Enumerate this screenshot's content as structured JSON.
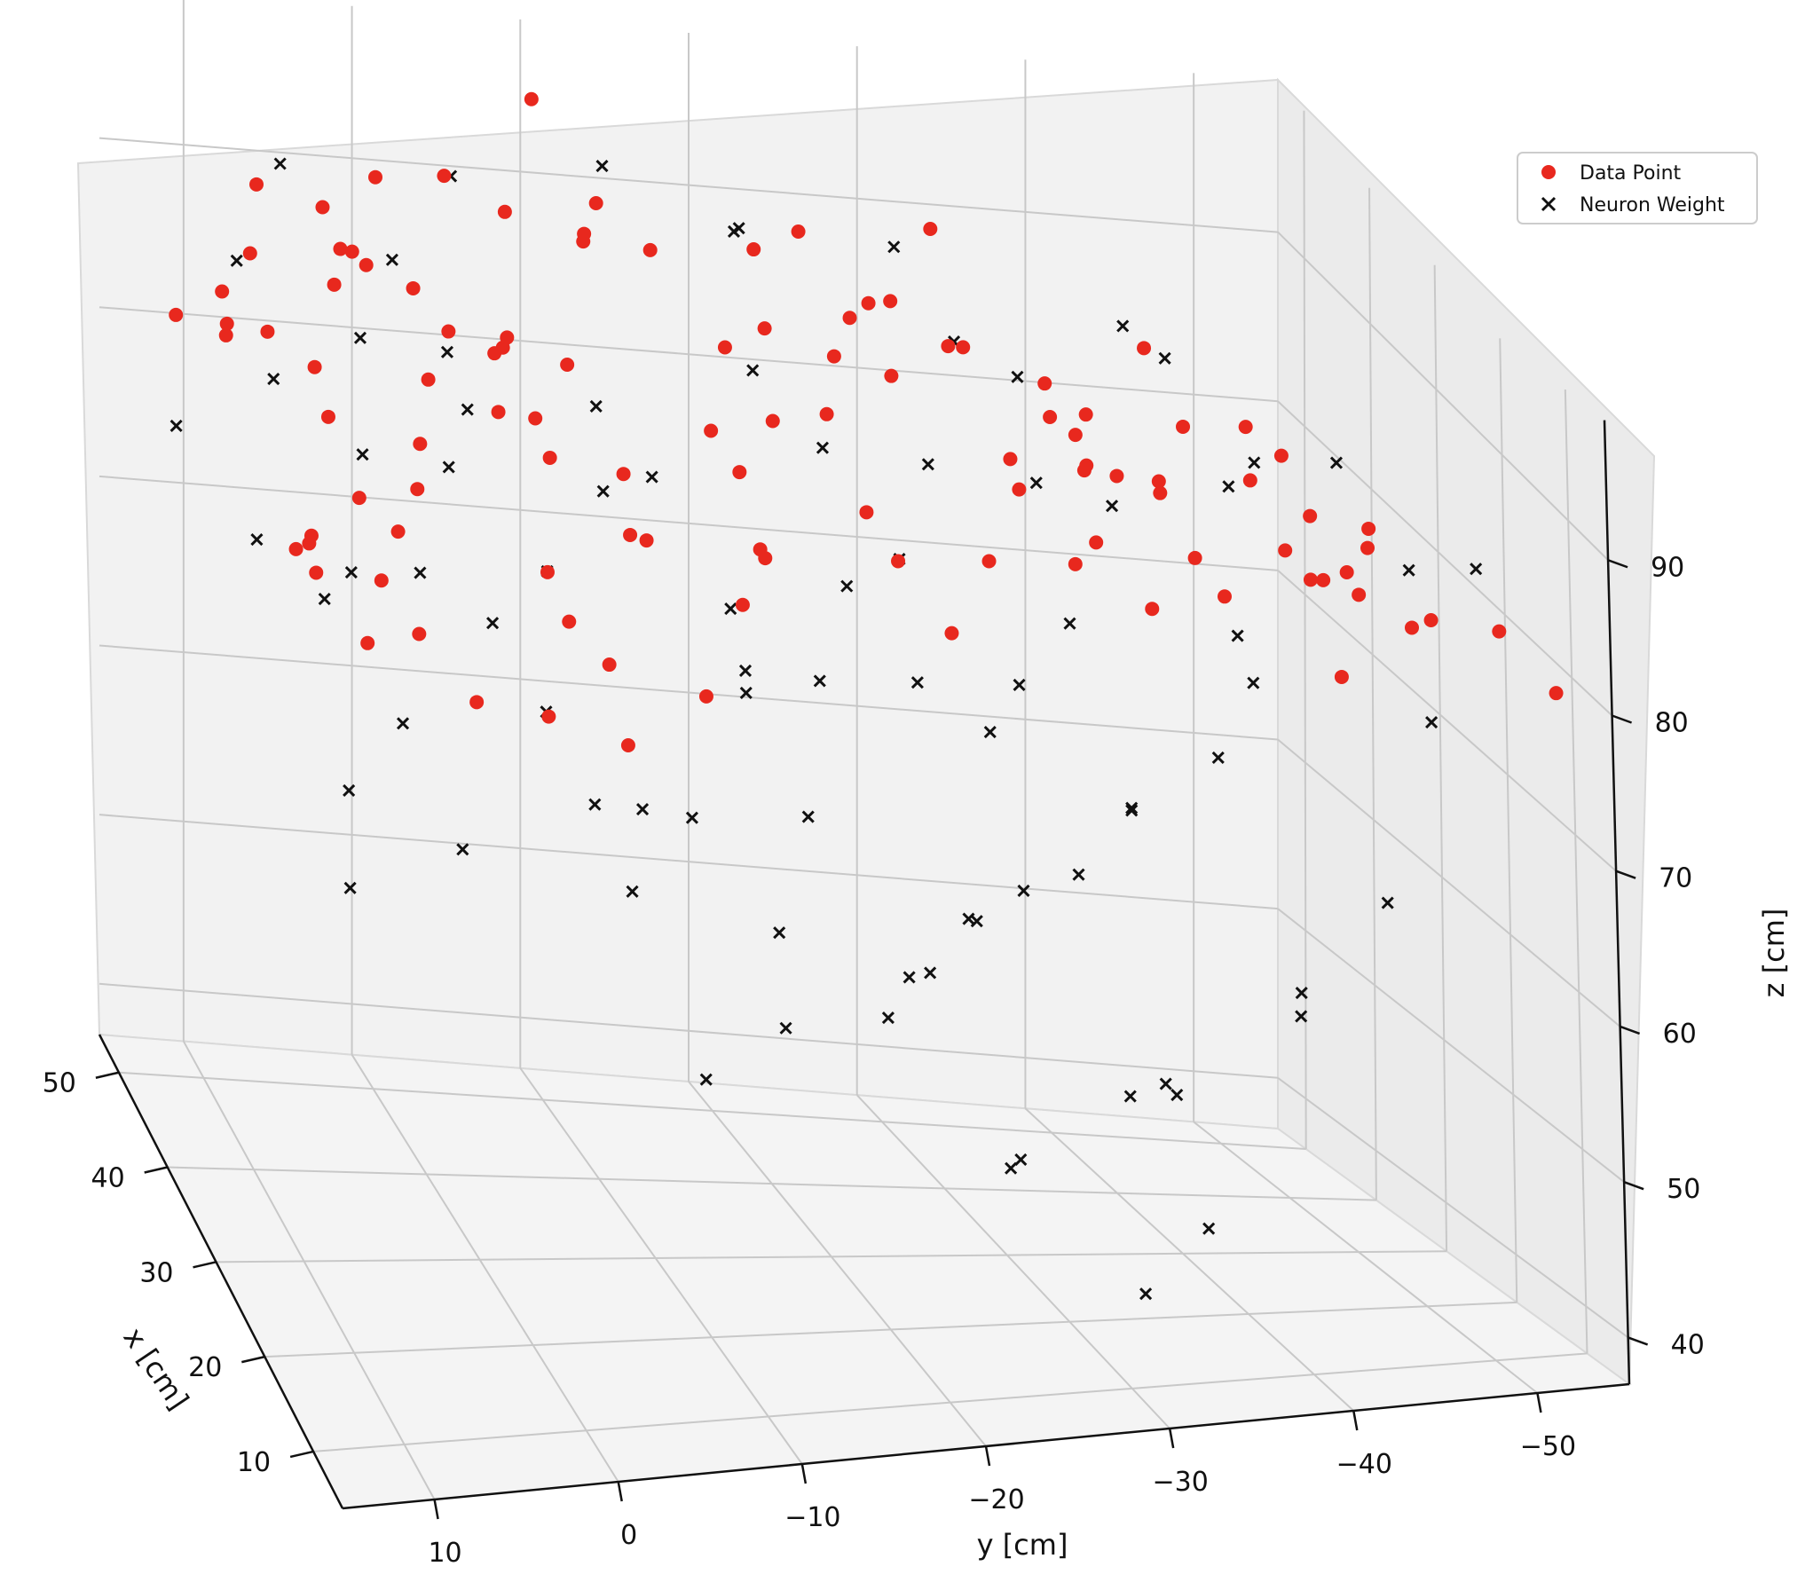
{
  "chart_data": {
    "type": "scatter3d",
    "title": "",
    "xlabel": "x [cm]",
    "ylabel": "y [cm]",
    "zlabel": "z [cm]",
    "xlim": [
      4,
      54
    ],
    "ylim": [
      15,
      -55
    ],
    "zlim": [
      37,
      99
    ],
    "x_ticks": [
      10,
      20,
      30,
      40,
      50
    ],
    "y_ticks": [
      10,
      0,
      -10,
      -20,
      -30,
      -40,
      -50
    ],
    "z_ticks": [
      40,
      50,
      60,
      70,
      80,
      90
    ],
    "x_tick_labels": [
      "10",
      "20",
      "30",
      "40",
      "50"
    ],
    "y_tick_labels": [
      "10",
      "0",
      "−10",
      "−20",
      "−30",
      "−40",
      "−50"
    ],
    "z_tick_labels": [
      "40",
      "50",
      "60",
      "70",
      "80",
      "90"
    ],
    "grid": true,
    "legend_position": "top-right",
    "series": [
      {
        "name": "Data Point",
        "marker": "circle",
        "color": "#e8281e",
        "shape": "upper shell of a dome, z from about 80 to 97 cm",
        "values": [
          [
            25.6,
            2.3,
            98.5
          ],
          [
            40.3,
            -1.5,
            98.0
          ],
          [
            49.2,
            -9.2,
            97.2
          ],
          [
            18.1,
            5.9,
            96.9
          ],
          [
            24.6,
            -4.1,
            96.9
          ],
          [
            18.6,
            -13.9,
            96.9
          ],
          [
            36.4,
            -8.4,
            96.7
          ],
          [
            25.8,
            -19.5,
            96.2
          ],
          [
            10.2,
            -16.6,
            96.0
          ],
          [
            21.3,
            -17.7,
            95.4
          ],
          [
            12.2,
            -25.6,
            95.4
          ],
          [
            34.7,
            6.4,
            95.0
          ],
          [
            26.4,
            -22.9,
            94.5
          ],
          [
            44.4,
            8.3,
            94.3
          ],
          [
            44.0,
            -11.4,
            94.3
          ],
          [
            34.9,
            -24.3,
            94.0
          ],
          [
            10.5,
            0.9,
            93.7
          ],
          [
            14.9,
            8.0,
            93.7
          ],
          [
            43.1,
            -22.9,
            93.6
          ],
          [
            25.4,
            9.2,
            93.4
          ],
          [
            14.0,
            -4.6,
            93.2
          ],
          [
            42.7,
            -10.3,
            93.2
          ],
          [
            18.5,
            -31.3,
            93.1
          ],
          [
            19.9,
            -27.5,
            92.9
          ],
          [
            32.1,
            -15.2,
            92.9
          ],
          [
            45.5,
            -31.4,
            92.8
          ],
          [
            11.7,
            -11.4,
            92.7
          ],
          [
            30.7,
            8.6,
            92.7
          ],
          [
            32.4,
            -2.6,
            92.7
          ],
          [
            10.3,
            -18.3,
            92.5
          ],
          [
            15.9,
            12.7,
            92.5
          ],
          [
            45.3,
            4.2,
            92.5
          ],
          [
            48.5,
            0.2,
            92.4
          ],
          [
            24.8,
            -12.2,
            92.3
          ],
          [
            35.0,
            12.5,
            92.3
          ],
          [
            34.4,
            -3.4,
            92.0
          ],
          [
            42.3,
            4.0,
            92.0
          ],
          [
            41.2,
            2.8,
            91.8
          ],
          [
            16.9,
            13.2,
            91.4
          ],
          [
            25.0,
            -32.8,
            91.3
          ],
          [
            44.5,
            -14.7,
            91.3
          ],
          [
            9.1,
            11.2,
            91.0
          ],
          [
            31.4,
            -33.2,
            91.0
          ],
          [
            35.8,
            -40.4,
            90.9
          ],
          [
            13.0,
            -24.1,
            90.5
          ],
          [
            23.6,
            -6.9,
            90.5
          ],
          [
            32.7,
            1.6,
            90.5
          ],
          [
            36.8,
            12.1,
            90.3
          ],
          [
            20.4,
            -36.0,
            90.0
          ],
          [
            37.3,
            -30.5,
            90.0
          ],
          [
            49.8,
            -7.8,
            90.0
          ],
          [
            11.2,
            -0.4,
            89.8
          ],
          [
            42.7,
            -28.1,
            89.8
          ],
          [
            45.6,
            2.4,
            89.7
          ],
          [
            16.1,
            -31.0,
            89.5
          ],
          [
            48.7,
            -22.1,
            89.3
          ],
          [
            8.2,
            -40.9,
            89.2
          ],
          [
            13.5,
            -40.6,
            89.1
          ],
          [
            31.3,
            -4.1,
            89.0
          ],
          [
            23.5,
            -42.1,
            88.9
          ],
          [
            24.7,
            7.7,
            88.7
          ],
          [
            41.2,
            -20.3,
            88.7
          ],
          [
            15.7,
            -29.7,
            88.4
          ],
          [
            26.3,
            -33.7,
            88.3
          ],
          [
            19.0,
            11.6,
            88.2
          ],
          [
            15.9,
            -36.4,
            88.1
          ],
          [
            43.8,
            -26.1,
            88.1
          ],
          [
            19.4,
            -13.3,
            88.1
          ],
          [
            10.1,
            -36.1,
            88.0
          ],
          [
            32.1,
            -41.3,
            87.9
          ],
          [
            29.5,
            -4.4,
            87.7
          ],
          [
            26.3,
            -37.9,
            87.5
          ],
          [
            48.8,
            7.5,
            87.2
          ],
          [
            22.4,
            -7.8,
            87.0
          ],
          [
            8.7,
            5.4,
            86.8
          ],
          [
            28.9,
            -36.4,
            86.5
          ],
          [
            12.9,
            -33.0,
            86.4
          ],
          [
            42.9,
            8.1,
            86.4
          ],
          [
            12.0,
            -44.1,
            86.4
          ],
          [
            24.8,
            10.4,
            86.3
          ],
          [
            47.8,
            -1.8,
            86.3
          ],
          [
            36.5,
            -35.2,
            86.2
          ],
          [
            16.2,
            -44.9,
            86.2
          ],
          [
            20.0,
            -47.4,
            86.1
          ],
          [
            37.0,
            -3.6,
            85.7
          ],
          [
            47.9,
            9.4,
            85.4
          ],
          [
            31.6,
            -15.8,
            85.4
          ],
          [
            17.1,
            6.4,
            85.3
          ],
          [
            9.9,
            -7.5,
            85.1
          ],
          [
            43.9,
            -5.4,
            85.0
          ],
          [
            7.5,
            -50.2,
            84.9
          ],
          [
            38.8,
            -47.3,
            84.7
          ],
          [
            40.3,
            -38.6,
            84.5
          ],
          [
            10.6,
            -46.5,
            84.5
          ],
          [
            15.8,
            -22.8,
            84.3
          ],
          [
            47.2,
            12.3,
            84.3
          ],
          [
            48.9,
            -33.6,
            84.1
          ],
          [
            20.6,
            -44.4,
            83.9
          ],
          [
            20.9,
            -12.7,
            83.6
          ],
          [
            28.2,
            -50.4,
            83.3
          ],
          [
            33.4,
            2.1,
            83.2
          ],
          [
            15.3,
            -49.2,
            83.0
          ],
          [
            39.2,
            -49.5,
            82.8
          ],
          [
            12.5,
            0.5,
            82.7
          ],
          [
            9.7,
            -3.1,
            82.4
          ],
          [
            26.7,
            6.0,
            82.0
          ],
          [
            33.2,
            -48.9,
            81.8
          ],
          [
            18.8,
            -4.6,
            81.5
          ],
          [
            6.0,
            -52.7,
            81.1
          ],
          [
            12.7,
            -43.3,
            80.9
          ]
        ]
      },
      {
        "name": "Neuron Weight",
        "marker": "x",
        "color": "#111111",
        "shape": "dense dome-shaped volume, z from about 40 to 96 cm",
        "values": [
          [
            18.6,
            3.1,
            98.6
          ],
          [
            26.7,
            2.1,
            96.4
          ],
          [
            33.8,
            3.3,
            97.2
          ],
          [
            42.1,
            -2.4,
            96.8
          ],
          [
            23.4,
            -14.2,
            97.0
          ],
          [
            15.2,
            -21.5,
            95.8
          ],
          [
            38.8,
            -18.1,
            96.2
          ],
          [
            10.3,
            -30.1,
            94.6
          ],
          [
            46.1,
            -12.4,
            95.3
          ],
          [
            30.6,
            -27.8,
            94.1
          ],
          [
            12.1,
            11.3,
            93.4
          ],
          [
            20.2,
            8.6,
            94.8
          ],
          [
            47.4,
            6.1,
            93.6
          ],
          [
            36.1,
            -39.3,
            92.1
          ],
          [
            22.8,
            -42.1,
            90.4
          ],
          [
            8.8,
            4.4,
            91.9
          ],
          [
            45.9,
            -29.4,
            91.4
          ],
          [
            17.6,
            -38.9,
            91.8
          ],
          [
            29.7,
            11.2,
            92.7
          ],
          [
            40.5,
            10.5,
            92.3
          ],
          [
            9.7,
            -46.1,
            88.6
          ],
          [
            49.8,
            -21.3,
            89.7
          ],
          [
            28.4,
            -48.7,
            87.4
          ],
          [
            14.9,
            -51.6,
            86.2
          ],
          [
            42.8,
            -44.1,
            86.9
          ],
          [
            25.6,
            -6.3,
            88.1
          ],
          [
            31.1,
            -20.4,
            87.2
          ],
          [
            18.4,
            -17.8,
            86.1
          ],
          [
            37.9,
            -9.5,
            85.6
          ],
          [
            11.8,
            -10.2,
            85.3
          ],
          [
            46.1,
            1.8,
            84.2
          ],
          [
            23.3,
            4.7,
            84.8
          ],
          [
            34.2,
            -33.6,
            83.3
          ],
          [
            19.4,
            -30.5,
            82.4
          ],
          [
            48.7,
            -37.6,
            82.6
          ],
          [
            9.2,
            -22.8,
            81.2
          ],
          [
            40.1,
            -1.6,
            80.3
          ],
          [
            27.3,
            -13.9,
            79.4
          ],
          [
            15.5,
            7.8,
            80.7
          ],
          [
            44.2,
            13.1,
            79.6
          ],
          [
            7.1,
            -5.8,
            78.8
          ],
          [
            31.8,
            7.9,
            77.4
          ],
          [
            21.2,
            -41.3,
            77.1
          ],
          [
            38.4,
            -27.1,
            76.3
          ],
          [
            12.7,
            -36.4,
            76.4
          ],
          [
            47.2,
            -15.6,
            76.1
          ],
          [
            26.6,
            -24.2,
            74.9
          ],
          [
            16.8,
            -3.1,
            73.8
          ],
          [
            35.7,
            -45.6,
            73.2
          ],
          [
            9.4,
            12.4,
            74.6
          ],
          [
            43.2,
            -8.2,
            72.3
          ],
          [
            24.1,
            -52.3,
            72.8
          ],
          [
            30.5,
            -4.3,
            71.1
          ],
          [
            19.7,
            -15.8,
            70.5
          ],
          [
            48.6,
            7.2,
            70.2
          ],
          [
            13.1,
            -28.7,
            69.4
          ],
          [
            37.2,
            -17.8,
            68.5
          ],
          [
            22.4,
            2.8,
            67.6
          ],
          [
            41.9,
            -35.2,
            67.1
          ],
          [
            8.2,
            -18.9,
            66.3
          ],
          [
            28.6,
            -36.9,
            65.7
          ],
          [
            46.3,
            -25.1,
            64.8
          ],
          [
            17.3,
            -47.2,
            64.2
          ],
          [
            33.4,
            -10.6,
            63.3
          ],
          [
            25.3,
            -29.6,
            62.2
          ],
          [
            11.2,
            -40.2,
            61.3
          ],
          [
            39.8,
            4.4,
            60.5
          ],
          [
            20.7,
            -21.6,
            59.3
          ],
          [
            44.6,
            -42.7,
            58.6
          ],
          [
            29.8,
            -17.2,
            57.5
          ],
          [
            14.8,
            -8.4,
            56.7
          ],
          [
            36.3,
            -30.2,
            55.2
          ],
          [
            23.8,
            -44.6,
            54.4
          ],
          [
            42.7,
            -12.9,
            53.3
          ],
          [
            18.5,
            -33.1,
            52.1
          ],
          [
            31.2,
            -23.8,
            51.4
          ],
          [
            47.8,
            -34.8,
            50.2
          ],
          [
            27.1,
            -38.1,
            48.9
          ],
          [
            38.6,
            -20.4,
            47.2
          ],
          [
            21.6,
            -27.4,
            46.3
          ],
          [
            34.7,
            -41.5,
            45.1
          ],
          [
            16.4,
            -36.6,
            44.2
          ],
          [
            29.3,
            -30.6,
            43.3
          ],
          [
            12.2,
            -31.6,
            42.1
          ]
        ]
      }
    ]
  }
}
